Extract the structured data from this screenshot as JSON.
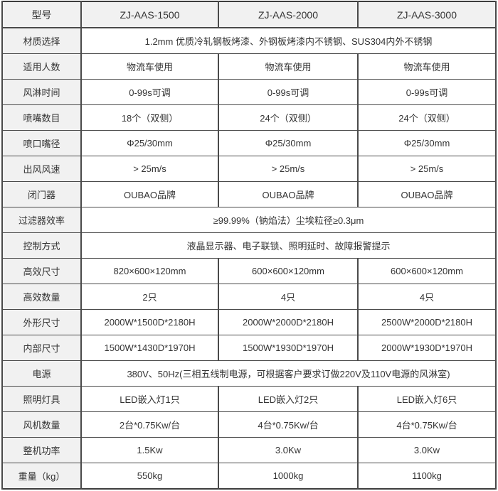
{
  "table": {
    "rows": [
      {
        "header": true,
        "label": "型号",
        "values": [
          "ZJ-AAS-1500",
          "ZJ-AAS-2000",
          "ZJ-AAS-3000"
        ]
      },
      {
        "label": "材质选择",
        "span": "1.2mm 优质冷轧钢板烤漆、外钢板烤漆内不锈钢、SUS304内外不锈钢"
      },
      {
        "label": "适用人数",
        "values": [
          "物流车使用",
          "物流车使用",
          "物流车使用"
        ]
      },
      {
        "label": "风淋时间",
        "values": [
          "0-99s可调",
          "0-99s可调",
          "0-99s可调"
        ]
      },
      {
        "label": "喷嘴数目",
        "values": [
          "18个（双侧）",
          "24个（双侧）",
          "24个（双侧）"
        ]
      },
      {
        "label": "喷口嘴径",
        "values": [
          "Φ25/30mm",
          "Φ25/30mm",
          "Φ25/30mm"
        ]
      },
      {
        "label": "出风风速",
        "values": [
          "> 25m/s",
          "> 25m/s",
          "> 25m/s"
        ]
      },
      {
        "label": "闭门器",
        "values": [
          "OUBAO品牌",
          "OUBAO品牌",
          "OUBAO品牌"
        ]
      },
      {
        "label": "过滤器效率",
        "span": "≥99.99%（钠焰法）尘埃粒径≥0.3μm"
      },
      {
        "label": "控制方式",
        "span": "液晶显示器、电子联锁、照明延时、故障报警提示"
      },
      {
        "label": "高效尺寸",
        "values": [
          "820×600×120mm",
          "600×600×120mm",
          "600×600×120mm"
        ]
      },
      {
        "label": "高效数量",
        "values": [
          "2只",
          "4只",
          "4只"
        ]
      },
      {
        "label": "外形尺寸",
        "values": [
          "2000W*1500D*2180H",
          "2000W*2000D*2180H",
          "2500W*2000D*2180H"
        ]
      },
      {
        "label": "内部尺寸",
        "values": [
          "1500W*1430D*1970H",
          "1500W*1930D*1970H",
          "2000W*1930D*1970H"
        ]
      },
      {
        "label": "电源",
        "span": "380V、50Hz(三相五线制电源，可根据客户要求订做220V及110V电源的风淋室)"
      },
      {
        "label": "照明灯具",
        "values": [
          "LED嵌入灯1只",
          "LED嵌入灯2只",
          "LED嵌入灯6只"
        ]
      },
      {
        "label": "风机数量",
        "values": [
          "2台*0.75Kw/台",
          "4台*0.75Kw/台",
          "4台*0.75Kw/台"
        ]
      },
      {
        "label": "整机功率",
        "values": [
          "1.5Kw",
          "3.0Kw",
          "3.0Kw"
        ]
      },
      {
        "label": "重量（kg）",
        "values": [
          "550kg",
          "1000kg",
          "1100kg"
        ]
      }
    ]
  },
  "colors": {
    "header_bg": "#f1f1f1",
    "label_bg": "#f1f1f1",
    "cell_bg": "#ffffff",
    "border": "#4a4a4a",
    "outer_border": "#3d3d3d",
    "text": "#333333"
  }
}
